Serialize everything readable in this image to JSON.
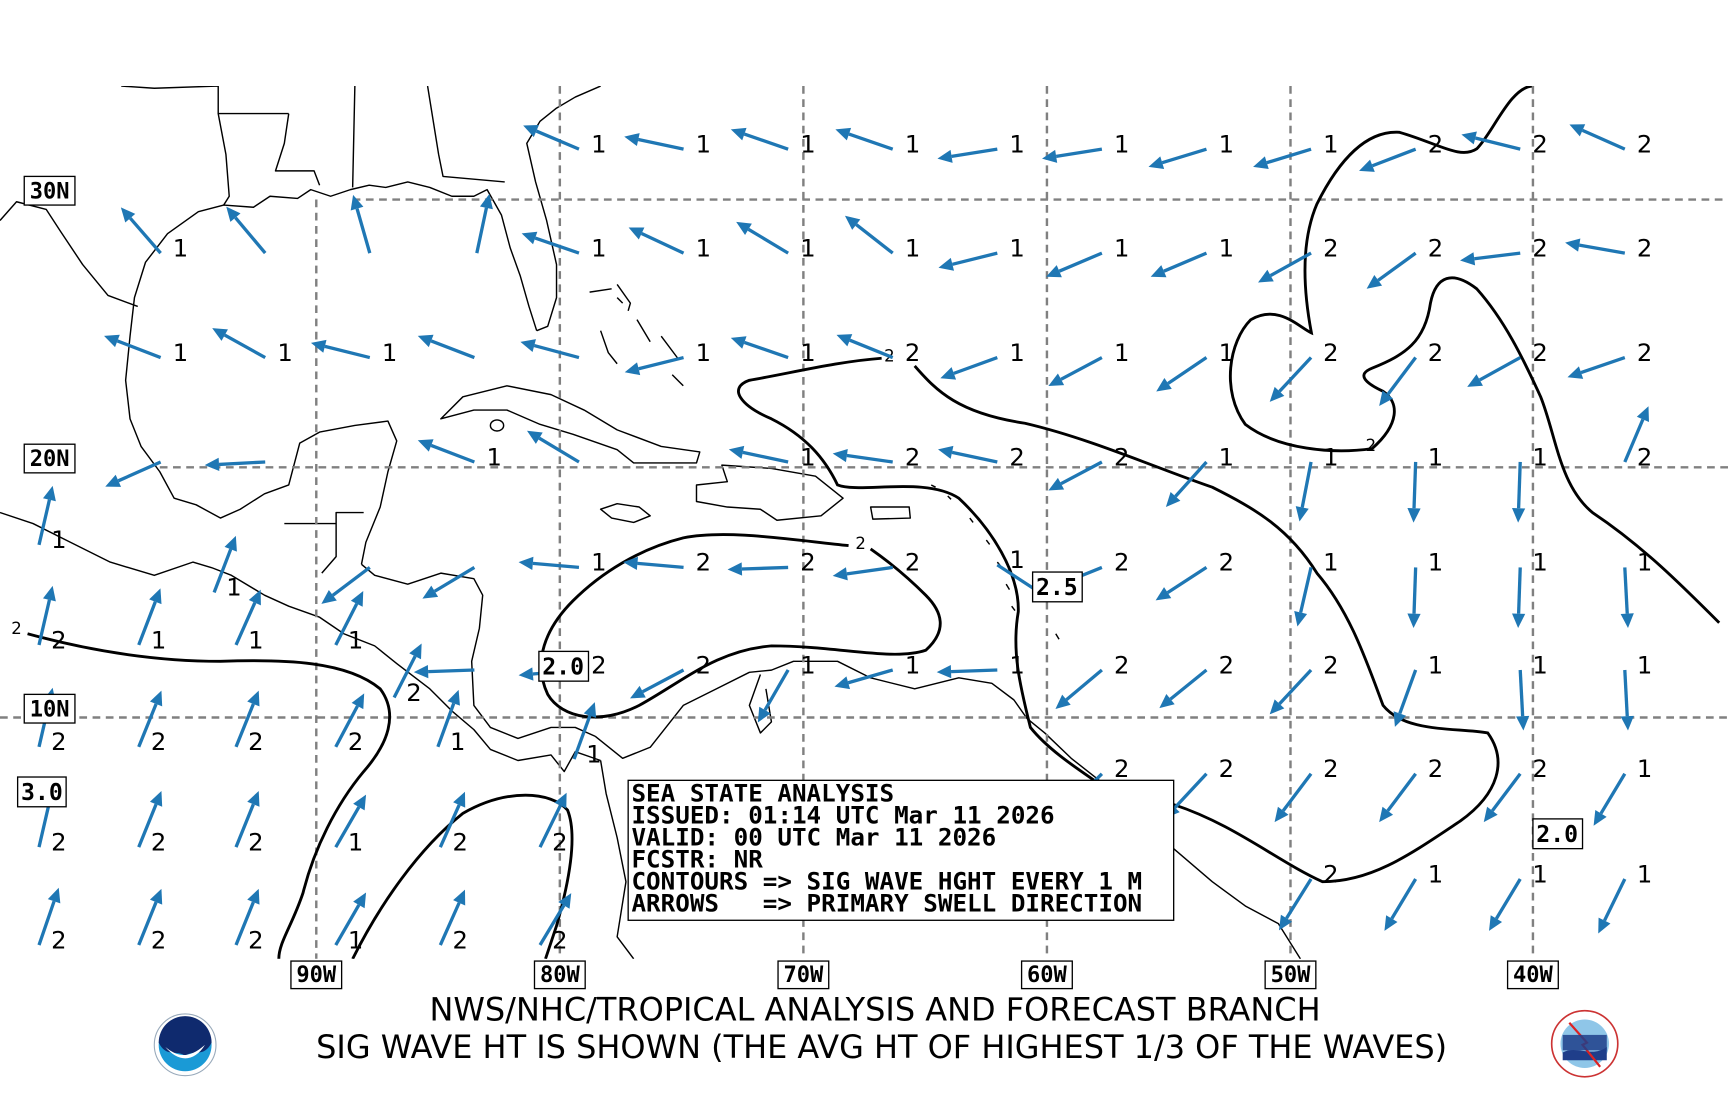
{
  "footer": {
    "line1": "NWS/NHC/TROPICAL ANALYSIS AND FORECAST BRANCH",
    "line2": "SIG WAVE HT IS SHOWN (THE AVG HT OF HIGHEST 1/3 OF THE WAVES)",
    "logo_left": "NOAA",
    "logo_right": "TAFB"
  },
  "legend": {
    "lines": [
      "SEA STATE ANALYSIS",
      "ISSUED: 01:14 UTC Mar 11 2026",
      "VALID: 00 UTC Mar 11 2026",
      "FCSTR: NR",
      "CONTOURS => SIG WAVE HGHT EVERY 1 M",
      "ARROWS   => PRIMARY SWELL DIRECTION"
    ]
  },
  "lat_labels": [
    "30N",
    "20N",
    "10N"
  ],
  "lon_labels": [
    "90W",
    "80W",
    "70W",
    "60W",
    "50W",
    "40W"
  ],
  "contour_labels": {
    "boxed": [
      "2.0",
      "2.5",
      "3.0",
      "2.0"
    ],
    "inline": [
      "2",
      "2",
      "2",
      "2"
    ]
  },
  "colors": {
    "arrow": "#1f77b4",
    "contour": "#000000",
    "grid": "#808080"
  },
  "arrows": [
    {
      "lon": -79.2,
      "lat": 31.8,
      "dir": 293,
      "hs": "1"
    },
    {
      "lon": -74.9,
      "lat": 31.8,
      "dir": 282,
      "hs": "1"
    },
    {
      "lon": -70.6,
      "lat": 31.8,
      "dir": 289,
      "hs": "1"
    },
    {
      "lon": -66.3,
      "lat": 31.8,
      "dir": 289,
      "hs": "1"
    },
    {
      "lon": -62.0,
      "lat": 31.8,
      "dir": 261,
      "hs": "1"
    },
    {
      "lon": -57.7,
      "lat": 31.8,
      "dir": 261,
      "hs": "1"
    },
    {
      "lon": -53.4,
      "lat": 31.8,
      "dir": 253,
      "hs": "1"
    },
    {
      "lon": -49.1,
      "lat": 31.8,
      "dir": 253,
      "hs": "1"
    },
    {
      "lon": -44.8,
      "lat": 31.8,
      "dir": 249,
      "hs": "2"
    },
    {
      "lon": -40.5,
      "lat": 31.8,
      "dir": 284,
      "hs": "2"
    },
    {
      "lon": -36.2,
      "lat": 31.8,
      "dir": 294,
      "hs": "2"
    },
    {
      "lon": -96.4,
      "lat": 28.0,
      "dir": 319,
      "hs": "1"
    },
    {
      "lon": -92.1,
      "lat": 28.0,
      "dir": 320,
      "hs": ""
    },
    {
      "lon": -87.8,
      "lat": 28.0,
      "dir": 344,
      "hs": ""
    },
    {
      "lon": -83.4,
      "lat": 28.0,
      "dir": 12,
      "hs": ""
    },
    {
      "lon": -79.2,
      "lat": 28.0,
      "dir": 289,
      "hs": "1"
    },
    {
      "lon": -74.9,
      "lat": 28.0,
      "dir": 295,
      "hs": "1"
    },
    {
      "lon": -70.6,
      "lat": 28.0,
      "dir": 301,
      "hs": "1"
    },
    {
      "lon": -66.3,
      "lat": 28.0,
      "dir": 308,
      "hs": "1"
    },
    {
      "lon": -62.0,
      "lat": 28.0,
      "dir": 256,
      "hs": "1"
    },
    {
      "lon": -57.7,
      "lat": 28.0,
      "dir": 247,
      "hs": "1"
    },
    {
      "lon": -53.4,
      "lat": 28.0,
      "dir": 247,
      "hs": "1"
    },
    {
      "lon": -49.1,
      "lat": 28.0,
      "dir": 241,
      "hs": "2"
    },
    {
      "lon": -44.8,
      "lat": 28.0,
      "dir": 234,
      "hs": "2"
    },
    {
      "lon": -40.5,
      "lat": 28.0,
      "dir": 263,
      "hs": "2"
    },
    {
      "lon": -36.2,
      "lat": 28.0,
      "dir": 280,
      "hs": "2"
    },
    {
      "lon": -96.4,
      "lat": 24.1,
      "dir": 291,
      "hs": "1"
    },
    {
      "lon": -92.1,
      "lat": 24.1,
      "dir": 299,
      "hs": "1"
    },
    {
      "lon": -87.8,
      "lat": 24.1,
      "dir": 284,
      "hs": "1"
    },
    {
      "lon": -83.5,
      "lat": 24.1,
      "dir": 291,
      "hs": ""
    },
    {
      "lon": -79.2,
      "lat": 24.1,
      "dir": 285,
      "hs": ""
    },
    {
      "lon": -74.9,
      "lat": 24.1,
      "dir": 256,
      "hs": "1"
    },
    {
      "lon": -70.6,
      "lat": 24.1,
      "dir": 289,
      "hs": "1"
    },
    {
      "lon": -66.3,
      "lat": 24.1,
      "dir": 292,
      "hs": "2"
    },
    {
      "lon": -62.0,
      "lat": 24.1,
      "dir": 250,
      "hs": "1"
    },
    {
      "lon": -57.7,
      "lat": 24.1,
      "dir": 242,
      "hs": "1"
    },
    {
      "lon": -53.4,
      "lat": 24.1,
      "dir": 236,
      "hs": "1"
    },
    {
      "lon": -49.1,
      "lat": 24.1,
      "dir": 223,
      "hs": "2"
    },
    {
      "lon": -44.8,
      "lat": 24.1,
      "dir": 217,
      "hs": "2"
    },
    {
      "lon": -40.5,
      "lat": 24.1,
      "dir": 241,
      "hs": "2"
    },
    {
      "lon": -36.2,
      "lat": 24.1,
      "dir": 251,
      "hs": "2"
    },
    {
      "lon": -96.4,
      "lat": 20.2,
      "dir": 246,
      "hs": ""
    },
    {
      "lon": -92.1,
      "lat": 20.2,
      "dir": 267,
      "hs": ""
    },
    {
      "lon": -83.5,
      "lat": 20.2,
      "dir": 291,
      "hs": "1"
    },
    {
      "lon": -79.2,
      "lat": 20.2,
      "dir": 301,
      "hs": ""
    },
    {
      "lon": -70.6,
      "lat": 20.2,
      "dir": 282,
      "hs": "1"
    },
    {
      "lon": -66.3,
      "lat": 20.2,
      "dir": 278,
      "hs": "2"
    },
    {
      "lon": -62.0,
      "lat": 20.2,
      "dir": 282,
      "hs": "2"
    },
    {
      "lon": -57.7,
      "lat": 20.2,
      "dir": 242,
      "hs": "2"
    },
    {
      "lon": -53.4,
      "lat": 20.2,
      "dir": 222,
      "hs": "1"
    },
    {
      "lon": -49.1,
      "lat": 20.2,
      "dir": 191,
      "hs": "1"
    },
    {
      "lon": -44.8,
      "lat": 20.2,
      "dir": 182,
      "hs": "1"
    },
    {
      "lon": -40.5,
      "lat": 20.2,
      "dir": 182,
      "hs": "1"
    },
    {
      "lon": -36.2,
      "lat": 20.2,
      "dir": 23,
      "hs": "2"
    },
    {
      "lon": -87.8,
      "lat": 16.0,
      "dir": 233,
      "hs": ""
    },
    {
      "lon": -83.5,
      "lat": 16.0,
      "dir": 239,
      "hs": ""
    },
    {
      "lon": -79.2,
      "lat": 16.0,
      "dir": 275,
      "hs": "1"
    },
    {
      "lon": -74.9,
      "lat": 16.0,
      "dir": 275,
      "hs": "2"
    },
    {
      "lon": -70.6,
      "lat": 16.0,
      "dir": 268,
      "hs": "2"
    },
    {
      "lon": -66.3,
      "lat": 16.0,
      "dir": 262,
      "hs": "2"
    },
    {
      "lon": -62.0,
      "lat": 16.1,
      "dir": 123,
      "hs": "1"
    },
    {
      "lon": -57.7,
      "lat": 16.0,
      "dir": 248,
      "hs": "2"
    },
    {
      "lon": -53.4,
      "lat": 16.0,
      "dir": 237,
      "hs": "2"
    },
    {
      "lon": -49.1,
      "lat": 16.0,
      "dir": 193,
      "hs": "1"
    },
    {
      "lon": -44.8,
      "lat": 16.0,
      "dir": 182,
      "hs": "1"
    },
    {
      "lon": -40.5,
      "lat": 16.0,
      "dir": 182,
      "hs": "1"
    },
    {
      "lon": -36.2,
      "lat": 16.0,
      "dir": 177,
      "hs": "1"
    },
    {
      "lon": -83.5,
      "lat": 11.9,
      "dir": 268,
      "hs": ""
    },
    {
      "lon": -79.2,
      "lat": 11.9,
      "dir": 265,
      "hs": "2"
    },
    {
      "lon": -74.9,
      "lat": 11.9,
      "dir": 242,
      "hs": "2"
    },
    {
      "lon": -70.6,
      "lat": 11.9,
      "dir": 210,
      "hs": "1"
    },
    {
      "lon": -66.3,
      "lat": 11.9,
      "dir": 254,
      "hs": "1"
    },
    {
      "lon": -62.0,
      "lat": 11.9,
      "dir": 268,
      "hs": "1"
    },
    {
      "lon": -57.7,
      "lat": 11.9,
      "dir": 230,
      "hs": "2"
    },
    {
      "lon": -53.4,
      "lat": 11.9,
      "dir": 231,
      "hs": "2"
    },
    {
      "lon": -49.1,
      "lat": 11.9,
      "dir": 223,
      "hs": "2"
    },
    {
      "lon": -44.8,
      "lat": 11.9,
      "dir": 200,
      "hs": "1"
    },
    {
      "lon": -40.5,
      "lat": 11.9,
      "dir": 177,
      "hs": "1"
    },
    {
      "lon": -36.2,
      "lat": 11.9,
      "dir": 177,
      "hs": "1"
    },
    {
      "lon": -57.7,
      "lat": 7.7,
      "dir": 225,
      "hs": "2"
    },
    {
      "lon": -53.4,
      "lat": 7.7,
      "dir": 223,
      "hs": "2"
    },
    {
      "lon": -49.1,
      "lat": 7.7,
      "dir": 217,
      "hs": "2"
    },
    {
      "lon": -44.8,
      "lat": 7.7,
      "dir": 217,
      "hs": "2"
    },
    {
      "lon": -40.5,
      "lat": 7.7,
      "dir": 217,
      "hs": "2"
    },
    {
      "lon": -36.2,
      "lat": 7.7,
      "dir": 211,
      "hs": "1"
    },
    {
      "lon": -49.1,
      "lat": 3.4,
      "dir": 212,
      "hs": "2"
    },
    {
      "lon": -44.8,
      "lat": 3.4,
      "dir": 211,
      "hs": "1"
    },
    {
      "lon": -40.5,
      "lat": 3.4,
      "dir": 211,
      "hs": "1"
    },
    {
      "lon": -36.2,
      "lat": 3.4,
      "dir": 206,
      "hs": "1"
    },
    {
      "lon": -101.4,
      "lat": 16.9,
      "dir": 13,
      "hs": "1"
    },
    {
      "lon": -94.2,
      "lat": 15.0,
      "dir": 21,
      "hs": "1"
    },
    {
      "lon": -101.4,
      "lat": 12.9,
      "dir": 13,
      "hs": "2"
    },
    {
      "lon": -97.3,
      "lat": 12.9,
      "dir": 21,
      "hs": "1"
    },
    {
      "lon": -93.3,
      "lat": 12.9,
      "dir": 24,
      "hs": "1"
    },
    {
      "lon": -89.2,
      "lat": 12.9,
      "dir": 27,
      "hs": "1"
    },
    {
      "lon": -86.8,
      "lat": 10.8,
      "dir": 27,
      "hs": "2"
    },
    {
      "lon": -101.4,
      "lat": 8.8,
      "dir": 13,
      "hs": "2"
    },
    {
      "lon": -97.3,
      "lat": 8.8,
      "dir": 22,
      "hs": "2"
    },
    {
      "lon": -93.3,
      "lat": 8.8,
      "dir": 22,
      "hs": "2"
    },
    {
      "lon": -89.2,
      "lat": 8.8,
      "dir": 28,
      "hs": "2"
    },
    {
      "lon": -85.0,
      "lat": 8.8,
      "dir": 20,
      "hs": "1"
    },
    {
      "lon": -79.4,
      "lat": 8.3,
      "dir": 20,
      "hs": "1"
    },
    {
      "lon": -101.4,
      "lat": 4.7,
      "dir": 13,
      "hs": "2"
    },
    {
      "lon": -97.3,
      "lat": 4.7,
      "dir": 22,
      "hs": "2"
    },
    {
      "lon": -93.3,
      "lat": 4.7,
      "dir": 22,
      "hs": "2"
    },
    {
      "lon": -89.2,
      "lat": 4.7,
      "dir": 30,
      "hs": "1"
    },
    {
      "lon": -84.9,
      "lat": 4.7,
      "dir": 24,
      "hs": "2"
    },
    {
      "lon": -80.8,
      "lat": 4.7,
      "dir": 26,
      "hs": "2"
    },
    {
      "lon": -101.4,
      "lat": 0.7,
      "dir": 19,
      "hs": "2"
    },
    {
      "lon": -97.3,
      "lat": 0.7,
      "dir": 22,
      "hs": "2"
    },
    {
      "lon": -93.3,
      "lat": 0.7,
      "dir": 22,
      "hs": "2"
    },
    {
      "lon": -89.2,
      "lat": 0.7,
      "dir": 30,
      "hs": "1"
    },
    {
      "lon": -84.9,
      "lat": 0.7,
      "dir": 24,
      "hs": "2"
    },
    {
      "lon": -80.8,
      "lat": 0.7,
      "dir": 31,
      "hs": "2"
    }
  ]
}
